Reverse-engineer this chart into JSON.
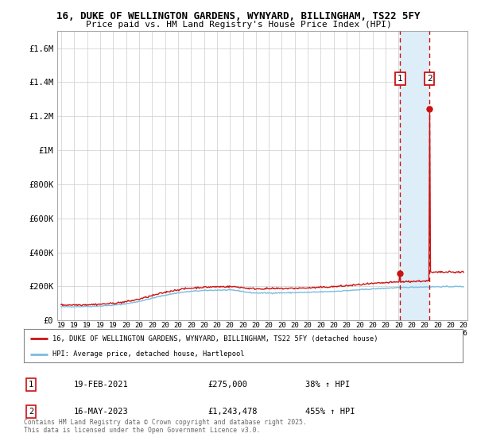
{
  "title_line1": "16, DUKE OF WELLINGTON GARDENS, WYNYARD, BILLINGHAM, TS22 5FY",
  "title_line2": "Price paid vs. HM Land Registry's House Price Index (HPI)",
  "ylim": [
    0,
    1700000
  ],
  "yticks": [
    0,
    200000,
    400000,
    600000,
    800000,
    1000000,
    1200000,
    1400000,
    1600000
  ],
  "ytick_labels": [
    "£0",
    "£200K",
    "£400K",
    "£600K",
    "£800K",
    "£1M",
    "£1.2M",
    "£1.4M",
    "£1.6M"
  ],
  "xmin": 1995,
  "xmax": 2026,
  "sale1_year": 2021.12,
  "sale1_price": 275000,
  "sale2_year": 2023.37,
  "sale2_price": 1243478,
  "hpi_color": "#7bbcde",
  "price_color": "#cc1111",
  "legend_label1": "16, DUKE OF WELLINGTON GARDENS, WYNYARD, BILLINGHAM, TS22 5FY (detached house)",
  "legend_label2": "HPI: Average price, detached house, Hartlepool",
  "annotation1_label": "1",
  "annotation1_date": "19-FEB-2021",
  "annotation1_price": "£275,000",
  "annotation1_change": "38% ↑ HPI",
  "annotation2_label": "2",
  "annotation2_date": "16-MAY-2023",
  "annotation2_price": "£1,243,478",
  "annotation2_change": "455% ↑ HPI",
  "footer": "Contains HM Land Registry data © Crown copyright and database right 2025.\nThis data is licensed under the Open Government Licence v3.0.",
  "bg_color": "#ffffff",
  "grid_color": "#cccccc",
  "span_color": "#ddeef8",
  "hatch_color": "#bbbbbb"
}
